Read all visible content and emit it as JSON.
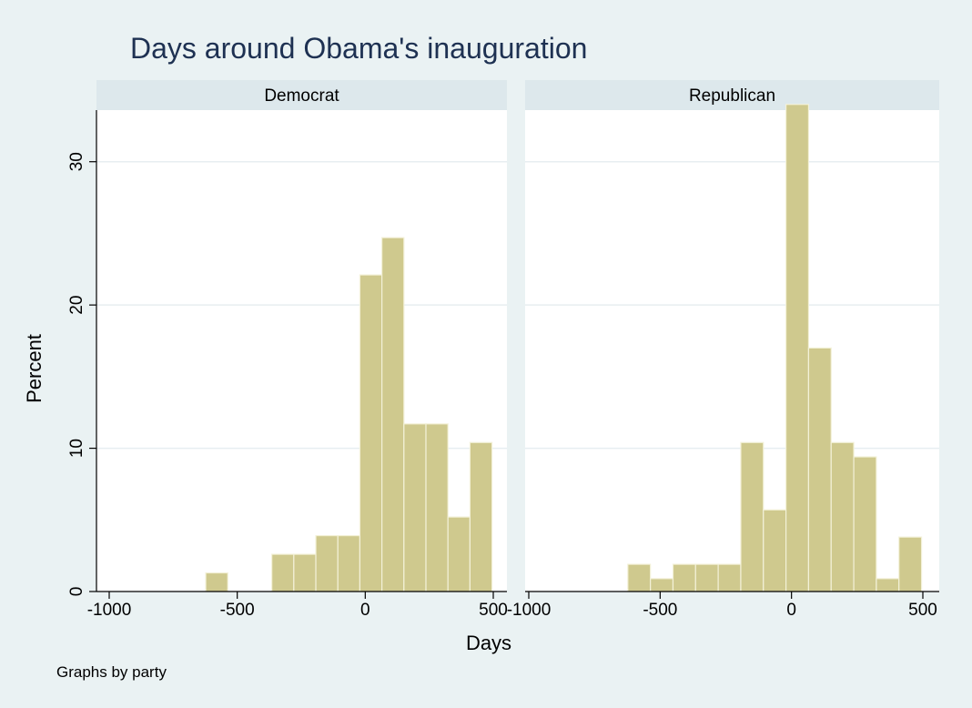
{
  "chart_data": {
    "type": "bar",
    "title": "Days around Obama's inauguration",
    "xlabel": "Days",
    "ylabel": "Percent",
    "note": "Graphs by party",
    "xlim": [
      -1000,
      500
    ],
    "ylim": [
      0,
      35
    ],
    "xticks": [
      "-1000",
      "-500",
      "0",
      "500"
    ],
    "yticks": [
      "0",
      "10",
      "20",
      "30"
    ],
    "bin_width": 86,
    "grid": true,
    "colors": {
      "bar_fill": "#cfc98e",
      "bar_edge": "#f3f1d8",
      "background": "#eaf2f3",
      "plot_bg": "#ffffff",
      "strip": "#dde8ec",
      "title": "#1e3152",
      "grid": "#e7eef1"
    },
    "panels": [
      {
        "name": "Democrat",
        "bars": [
          {
            "x0": -623,
            "x1": -537,
            "value": 1.3
          },
          {
            "x0": -365,
            "x1": -279,
            "value": 2.6
          },
          {
            "x0": -279,
            "x1": -193,
            "value": 2.6
          },
          {
            "x0": -193,
            "x1": -107,
            "value": 3.9
          },
          {
            "x0": -107,
            "x1": -21,
            "value": 3.9
          },
          {
            "x0": -21,
            "x1": 65,
            "value": 22.1
          },
          {
            "x0": 65,
            "x1": 151,
            "value": 24.7
          },
          {
            "x0": 151,
            "x1": 237,
            "value": 11.7
          },
          {
            "x0": 237,
            "x1": 323,
            "value": 11.7
          },
          {
            "x0": 323,
            "x1": 409,
            "value": 5.2
          },
          {
            "x0": 409,
            "x1": 495,
            "value": 10.4
          }
        ]
      },
      {
        "name": "Republican",
        "bars": [
          {
            "x0": -623,
            "x1": -537,
            "value": 1.9
          },
          {
            "x0": -537,
            "x1": -451,
            "value": 0.9
          },
          {
            "x0": -451,
            "x1": -365,
            "value": 1.9
          },
          {
            "x0": -365,
            "x1": -279,
            "value": 1.9
          },
          {
            "x0": -279,
            "x1": -193,
            "value": 1.9
          },
          {
            "x0": -193,
            "x1": -107,
            "value": 10.4
          },
          {
            "x0": -107,
            "x1": -21,
            "value": 5.7
          },
          {
            "x0": -21,
            "x1": 65,
            "value": 34.0
          },
          {
            "x0": 65,
            "x1": 151,
            "value": 17.0
          },
          {
            "x0": 151,
            "x1": 237,
            "value": 10.4
          },
          {
            "x0": 237,
            "x1": 323,
            "value": 9.4
          },
          {
            "x0": 323,
            "x1": 409,
            "value": 0.9
          },
          {
            "x0": 409,
            "x1": 495,
            "value": 3.8
          }
        ]
      }
    ]
  }
}
